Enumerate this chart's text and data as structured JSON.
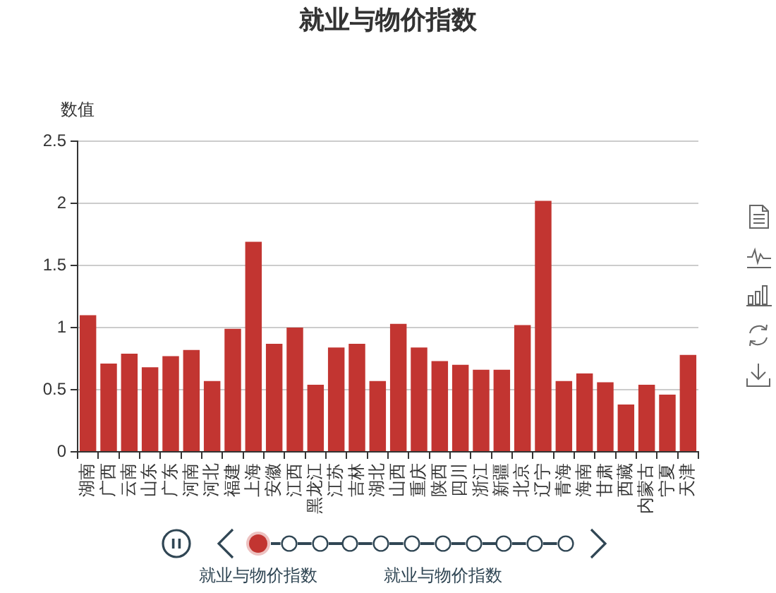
{
  "chart_data": {
    "type": "bar",
    "title": "就业与物价指数",
    "ylabel": "数值",
    "categories": [
      "湖南",
      "广西",
      "云南",
      "山东",
      "广东",
      "河南",
      "河北",
      "福建",
      "上海",
      "安徽",
      "江西",
      "黑龙江",
      "江苏",
      "吉林",
      "湖北",
      "山西",
      "重庆",
      "陕西",
      "四川",
      "浙江",
      "新疆",
      "北京",
      "辽宁",
      "青海",
      "海南",
      "甘肃",
      "西藏",
      "内蒙古",
      "宁夏",
      "天津"
    ],
    "values": [
      1.1,
      0.71,
      0.79,
      0.68,
      0.77,
      0.82,
      0.57,
      0.99,
      1.69,
      0.87,
      1.0,
      0.54,
      0.84,
      0.87,
      0.57,
      1.03,
      0.84,
      0.73,
      0.7,
      0.66,
      0.66,
      1.02,
      2.02,
      0.57,
      0.63,
      0.56,
      0.38,
      0.54,
      0.46,
      0.78
    ],
    "color": "#c23531",
    "ylim": [
      0,
      2.5
    ],
    "yticks": [
      0,
      0.5,
      1,
      1.5,
      2,
      2.5
    ],
    "grid": "y",
    "annotations": [
      "就业与物价指数",
      "就业与物价指数"
    ]
  }
}
